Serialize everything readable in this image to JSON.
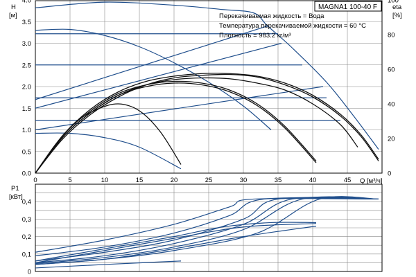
{
  "chart_data": [
    {
      "type": "line",
      "model_label": "MAGNA1 100-40 F",
      "ylabel": "H",
      "ylabel_unit": "[м]",
      "y2label": "eta",
      "y2label_unit": "[%]",
      "xlabel": "Q [м³/ч]",
      "xlim": [
        0,
        50
      ],
      "ylim": [
        0,
        4.0
      ],
      "y2lim": [
        0,
        100
      ],
      "x_ticks": [
        "0",
        "5",
        "10",
        "15",
        "20",
        "25",
        "30",
        "35",
        "40",
        "45"
      ],
      "y_ticks": [
        "0.0",
        "0.5",
        "1.0",
        "1.5",
        "2.0",
        "2.5",
        "3.0",
        "3.5",
        "4.0"
      ],
      "y2_ticks": [
        "0",
        "20",
        "40",
        "60",
        "80",
        "100"
      ],
      "grid": true,
      "annotations": [
        "Перекачиваемая жидкость = Вода",
        "Температура перекачиваемой жидкости = 60 °C",
        "Плотность = 983.2 кг/м³"
      ],
      "series": [
        {
          "kind": "head",
          "x": [
            0,
            10,
            20,
            27,
            31.5,
            33.5,
            37,
            42,
            46,
            49.5
          ],
          "y": [
            3.82,
            3.95,
            3.88,
            3.78,
            3.7,
            3.4,
            2.9,
            2.1,
            1.3,
            0.55
          ]
        },
        {
          "kind": "head",
          "x": [
            0,
            5,
            10,
            15,
            20,
            25,
            30,
            34
          ],
          "y": [
            3.3,
            3.32,
            3.18,
            2.92,
            2.55,
            2.1,
            1.55,
            1.0
          ]
        },
        {
          "kind": "head",
          "x": [
            0,
            5,
            10,
            15,
            21
          ],
          "y": [
            0.92,
            0.92,
            0.82,
            0.6,
            0.1
          ]
        },
        {
          "kind": "head",
          "x": [
            0,
            33.5
          ],
          "y": [
            1.7,
            3.4
          ]
        },
        {
          "kind": "head",
          "x": [
            0,
            35.5
          ],
          "y": [
            1.5,
            3.0
          ]
        },
        {
          "kind": "head",
          "x": [
            0,
            41.5
          ],
          "y": [
            1.0,
            2.0
          ]
        },
        {
          "kind": "head",
          "x": [
            0,
            35
          ],
          "y": [
            3.22,
            3.22
          ]
        },
        {
          "kind": "head",
          "x": [
            0,
            38.5
          ],
          "y": [
            2.5,
            2.5
          ]
        },
        {
          "kind": "head",
          "x": [
            0,
            42
          ],
          "y": [
            1.74,
            1.74
          ]
        },
        {
          "kind": "head",
          "x": [
            0,
            44
          ],
          "y": [
            1.22,
            1.22
          ]
        },
        {
          "kind": "efficiency",
          "x": [
            0,
            4,
            8,
            12,
            16,
            20,
            24,
            28,
            32,
            36,
            40,
            44,
            47,
            49.5
          ],
          "y": [
            0,
            22,
            37,
            47,
            53,
            56,
            57.5,
            57.5,
            56,
            52,
            45,
            34,
            22,
            8
          ]
        },
        {
          "kind": "efficiency",
          "x": [
            0,
            4,
            8,
            12,
            16,
            20,
            24,
            28,
            32,
            36,
            40,
            44,
            47,
            49.5
          ],
          "y": [
            0,
            20,
            34,
            44,
            51,
            55,
            56.5,
            57,
            55.5,
            51,
            44,
            33,
            21,
            7
          ]
        },
        {
          "kind": "efficiency",
          "x": [
            0,
            4,
            8,
            12,
            16,
            20,
            24,
            28,
            32,
            36,
            40,
            44,
            46.5
          ],
          "y": [
            0,
            21,
            35,
            45,
            51,
            54,
            55,
            54.5,
            52,
            48,
            40,
            28,
            15
          ]
        },
        {
          "kind": "efficiency",
          "x": [
            0,
            4,
            8,
            12,
            16,
            20,
            24,
            28,
            32,
            36,
            40.5
          ],
          "y": [
            0,
            22,
            36,
            46,
            51,
            53,
            52,
            48,
            40,
            27,
            7
          ]
        },
        {
          "kind": "efficiency",
          "x": [
            0,
            4,
            8,
            12,
            16,
            20,
            24,
            28,
            32,
            36,
            40.5
          ],
          "y": [
            0,
            21,
            35,
            45,
            50,
            52,
            51,
            47,
            39,
            26,
            6
          ]
        },
        {
          "kind": "efficiency",
          "x": [
            0,
            3,
            6,
            9,
            12,
            15,
            18,
            21
          ],
          "y": [
            0,
            17,
            30,
            37,
            40,
            36,
            24,
            5
          ]
        }
      ]
    },
    {
      "type": "line",
      "ylabel": "P1",
      "ylabel_unit": "[кВт]",
      "xlim": [
        0,
        50
      ],
      "ylim": [
        0,
        0.5
      ],
      "y_ticks": [
        "0",
        "0,1",
        "0,2",
        "0,3",
        "0,4"
      ],
      "grid": true,
      "series": [
        {
          "x": [
            0,
            10,
            20,
            28,
            31.5,
            49.5
          ],
          "y": [
            0.11,
            0.18,
            0.27,
            0.37,
            0.415,
            0.415
          ]
        },
        {
          "x": [
            0,
            10,
            20,
            28,
            33,
            49.5
          ],
          "y": [
            0.09,
            0.14,
            0.22,
            0.32,
            0.415,
            0.415
          ]
        },
        {
          "x": [
            0,
            10,
            20,
            30,
            35,
            49.5
          ],
          "y": [
            0.06,
            0.11,
            0.18,
            0.3,
            0.415,
            0.415
          ]
        },
        {
          "x": [
            0,
            10,
            20,
            30,
            37,
            49.5
          ],
          "y": [
            0.05,
            0.09,
            0.16,
            0.27,
            0.415,
            0.415
          ]
        },
        {
          "x": [
            0,
            10,
            20,
            30,
            38.5,
            49.5
          ],
          "y": [
            0.045,
            0.08,
            0.14,
            0.24,
            0.415,
            0.415
          ]
        },
        {
          "x": [
            0,
            10,
            20,
            32,
            41,
            49.5
          ],
          "y": [
            0.04,
            0.07,
            0.12,
            0.22,
            0.415,
            0.415
          ]
        },
        {
          "x": [
            0,
            10,
            20,
            27,
            34,
            40.5
          ],
          "y": [
            0.06,
            0.13,
            0.2,
            0.255,
            0.28,
            0.28
          ]
        },
        {
          "x": [
            0,
            10,
            20,
            30,
            40.5
          ],
          "y": [
            0.05,
            0.12,
            0.19,
            0.255,
            0.275
          ]
        },
        {
          "x": [
            0,
            10,
            21
          ],
          "y": [
            0.02,
            0.04,
            0.06
          ]
        },
        {
          "x": [
            0,
            10,
            20,
            30,
            40.5
          ],
          "y": [
            0.04,
            0.07,
            0.13,
            0.2,
            0.26
          ]
        }
      ]
    }
  ]
}
